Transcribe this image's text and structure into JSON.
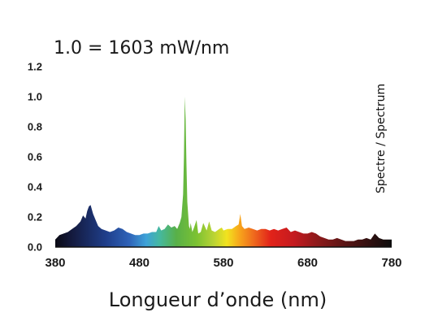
{
  "chart_data": {
    "type": "area",
    "title": "1.0 = 1603 mW/nm",
    "xlabel": "Longueur d’onde (nm)",
    "ylabel": "",
    "side_label": "Spectre / Spectrum",
    "xlim": [
      380,
      780
    ],
    "ylim": [
      0,
      1.2
    ],
    "x_ticks": [
      "380",
      "480",
      "580",
      "680",
      "780"
    ],
    "y_ticks": [
      "0.0",
      "0.2",
      "0.4",
      "0.6",
      "0.8",
      "1.0",
      "1.2"
    ],
    "grid": false,
    "legend": "none",
    "fill": "visible-spectrum color gradient",
    "x": [
      380,
      385,
      390,
      395,
      400,
      405,
      410,
      413,
      416,
      418,
      420,
      422,
      425,
      428,
      431,
      435,
      440,
      445,
      450,
      455,
      460,
      465,
      470,
      475,
      480,
      485,
      490,
      495,
      500,
      503,
      506,
      510,
      514,
      518,
      522,
      525,
      528,
      530,
      532,
      533,
      534,
      535,
      536,
      537,
      538,
      539,
      540,
      541,
      543,
      545,
      548,
      550,
      553,
      556,
      560,
      563,
      566,
      570,
      575,
      578,
      580,
      585,
      590,
      595,
      598,
      600,
      602,
      605,
      610,
      615,
      620,
      625,
      630,
      635,
      640,
      645,
      650,
      655,
      660,
      665,
      670,
      675,
      680,
      685,
      690,
      695,
      700,
      705,
      710,
      715,
      720,
      725,
      730,
      735,
      740,
      745,
      750,
      755,
      760,
      765,
      770,
      775,
      780
    ],
    "values": [
      0.05,
      0.08,
      0.09,
      0.1,
      0.12,
      0.14,
      0.17,
      0.21,
      0.19,
      0.24,
      0.27,
      0.28,
      0.22,
      0.18,
      0.14,
      0.12,
      0.11,
      0.1,
      0.11,
      0.13,
      0.12,
      0.1,
      0.09,
      0.08,
      0.08,
      0.09,
      0.09,
      0.1,
      0.1,
      0.14,
      0.11,
      0.12,
      0.15,
      0.13,
      0.14,
      0.12,
      0.16,
      0.2,
      0.35,
      0.6,
      1.0,
      0.85,
      0.55,
      0.3,
      0.22,
      0.14,
      0.12,
      0.16,
      0.1,
      0.13,
      0.18,
      0.09,
      0.1,
      0.16,
      0.11,
      0.17,
      0.11,
      0.1,
      0.12,
      0.13,
      0.11,
      0.12,
      0.12,
      0.14,
      0.15,
      0.22,
      0.14,
      0.12,
      0.13,
      0.12,
      0.11,
      0.12,
      0.12,
      0.11,
      0.12,
      0.11,
      0.12,
      0.13,
      0.1,
      0.11,
      0.1,
      0.09,
      0.09,
      0.1,
      0.09,
      0.07,
      0.06,
      0.05,
      0.05,
      0.06,
      0.05,
      0.04,
      0.04,
      0.04,
      0.05,
      0.05,
      0.06,
      0.05,
      0.09,
      0.06,
      0.05,
      0.05,
      0.05
    ]
  }
}
